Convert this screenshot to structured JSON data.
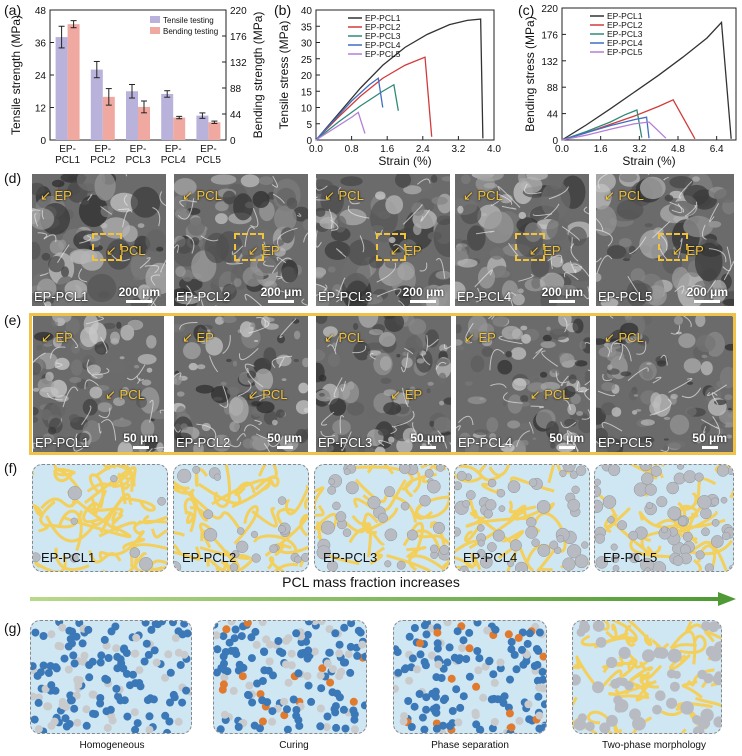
{
  "panels": {
    "a": "(a)",
    "b": "(b)",
    "c": "(c)",
    "d": "(d)",
    "e": "(e)",
    "f": "(f)",
    "g": "(g)"
  },
  "chart_data": [
    {
      "type": "bar",
      "id": "a",
      "categories": [
        "EP-\nPCL1",
        "EP-\nPCL2",
        "EP-\nPCL3",
        "EP-\nPCL4",
        "EP-\nPCL5"
      ],
      "category_lines": [
        [
          "EP-",
          "PCL1"
        ],
        [
          "EP-",
          "PCL2"
        ],
        [
          "EP-",
          "PCL3"
        ],
        [
          "EP-",
          "PCL4"
        ],
        [
          "EP-",
          "PCL5"
        ]
      ],
      "ylabel": "Tensile strength (MPa)",
      "ylabel2": "Bending strength (MPa)",
      "ylim": [
        0,
        48
      ],
      "ylim2": [
        0,
        220
      ],
      "yticks": [
        "0",
        "12",
        "24",
        "36",
        "48"
      ],
      "yticks2": [
        "0",
        "44",
        "88",
        "132",
        "176",
        "220"
      ],
      "series": [
        {
          "name": "Tensile testing",
          "axis": "left",
          "values": [
            38,
            26,
            18,
            17,
            9
          ],
          "errors": [
            4,
            3,
            2.5,
            1.2,
            1
          ],
          "color": "#b9b3dc"
        },
        {
          "name": "Bending testing",
          "axis": "right",
          "values": [
            196,
            73,
            56,
            38,
            30
          ],
          "errors": [
            6,
            14,
            10,
            2,
            2
          ],
          "color": "#f0a9a1"
        }
      ],
      "legend": "top-right"
    },
    {
      "type": "line",
      "id": "b",
      "xlabel": "Strain (%)",
      "ylabel": "Tensile stress (MPa)",
      "xlim": [
        0,
        4.0
      ],
      "ylim": [
        0,
        40
      ],
      "xticks": [
        "0.0",
        "0.8",
        "1.6",
        "2.4",
        "3.2",
        "4.0"
      ],
      "yticks": [
        "0",
        "5",
        "10",
        "15",
        "20",
        "25",
        "30",
        "35",
        "40"
      ],
      "series": [
        {
          "name": "EP-PCL1",
          "color": "#333333",
          "x": [
            0,
            0.5,
            1.0,
            1.5,
            2.0,
            2.5,
            3.0,
            3.4,
            3.7,
            3.75
          ],
          "y": [
            0,
            8,
            16,
            23,
            28.5,
            32.5,
            35.5,
            36.8,
            37.2,
            0.5
          ]
        },
        {
          "name": "EP-PCL2",
          "color": "#d23b3b",
          "x": [
            0,
            0.5,
            1.0,
            1.5,
            2.0,
            2.45,
            2.6
          ],
          "y": [
            0,
            7,
            13.5,
            19,
            23,
            25.5,
            1
          ]
        },
        {
          "name": "EP-PCL3",
          "color": "#2f8a78",
          "x": [
            0,
            0.5,
            1.0,
            1.5,
            1.75,
            1.85
          ],
          "y": [
            0,
            5.5,
            10.5,
            15,
            17,
            9
          ]
        },
        {
          "name": "EP-PCL4",
          "color": "#3f6fc0",
          "x": [
            0,
            0.4,
            0.8,
            1.2,
            1.4,
            1.5
          ],
          "y": [
            0,
            6,
            12,
            17,
            19,
            10
          ]
        },
        {
          "name": "EP-PCL5",
          "color": "#b47fd6",
          "x": [
            0,
            0.4,
            0.8,
            0.95,
            1.1
          ],
          "y": [
            0,
            3.5,
            7,
            8.5,
            2
          ]
        }
      ],
      "legend": "top-left"
    },
    {
      "type": "line",
      "id": "c",
      "xlabel": "Strain (%)",
      "ylabel": "Bending stress (MPa)",
      "xlim": [
        0,
        7.2
      ],
      "ylim": [
        0,
        220
      ],
      "xticks": [
        "0.0",
        "1.6",
        "3.2",
        "4.8",
        "6.4"
      ],
      "yticks": [
        "0",
        "44",
        "88",
        "132",
        "176",
        "220"
      ],
      "series": [
        {
          "name": "EP-PCL1",
          "color": "#333333",
          "x": [
            0,
            1,
            2,
            3,
            4,
            5,
            6,
            6.6,
            7.0
          ],
          "y": [
            0,
            25,
            52,
            80,
            108,
            138,
            170,
            196,
            2
          ]
        },
        {
          "name": "EP-PCL2",
          "color": "#d23b3b",
          "x": [
            0,
            1,
            2,
            3,
            4,
            4.6,
            5.5
          ],
          "y": [
            0,
            12,
            26,
            40,
            56,
            67,
            2
          ]
        },
        {
          "name": "EP-PCL3",
          "color": "#2f8a78",
          "x": [
            0,
            1,
            2,
            2.6,
            3.1,
            3.3
          ],
          "y": [
            0,
            14,
            30,
            42,
            50,
            4
          ]
        },
        {
          "name": "EP-PCL4",
          "color": "#3f6fc0",
          "x": [
            0,
            1,
            2,
            3,
            3.5,
            3.6
          ],
          "y": [
            0,
            12,
            24,
            34,
            38,
            3
          ]
        },
        {
          "name": "EP-PCL5",
          "color": "#b47fd6",
          "x": [
            0,
            1,
            2,
            3,
            3.6,
            4.3
          ],
          "y": [
            0,
            8,
            18,
            27,
            30,
            3
          ]
        }
      ],
      "legend": "top-left"
    }
  ],
  "sem_d": [
    {
      "sample": "EP-PCL1",
      "scale": "200 μm",
      "labels": [
        "EP",
        "PCL"
      ]
    },
    {
      "sample": "EP-PCL2",
      "scale": "200 μm",
      "labels": [
        "PCL",
        "EP"
      ]
    },
    {
      "sample": "EP-PCL3",
      "scale": "200 μm",
      "labels": [
        "PCL",
        "EP"
      ]
    },
    {
      "sample": "EP-PCL4",
      "scale": "200 μm",
      "labels": [
        "PCL",
        "EP"
      ]
    },
    {
      "sample": "EP-PCL5",
      "scale": "200 μm",
      "labels": [
        "PCL",
        "EP"
      ]
    }
  ],
  "sem_e": [
    {
      "sample": "EP-PCL1",
      "scale": "50 μm",
      "labels": [
        "EP",
        "PCL"
      ]
    },
    {
      "sample": "EP-PCL2",
      "scale": "50 μm",
      "labels": [
        "EP",
        "PCL"
      ]
    },
    {
      "sample": "EP-PCL3",
      "scale": "50 μm",
      "labels": [
        "PCL",
        "EP"
      ]
    },
    {
      "sample": "EP-PCL4",
      "scale": "50 μm",
      "labels": [
        "EP",
        "PCL"
      ]
    },
    {
      "sample": "EP-PCL5",
      "scale": "50 μm",
      "labels": [
        "PCL"
      ]
    }
  ],
  "schem_f": [
    "EP-PCL1",
    "EP-PCL2",
    "EP-PCL3",
    "EP-PCL4",
    "EP-PCL5"
  ],
  "arrow_text": "PCL mass fraction increases",
  "schem_g": [
    "Homogeneous",
    "Curing",
    "Phase separation",
    "Two-phase morphology"
  ]
}
